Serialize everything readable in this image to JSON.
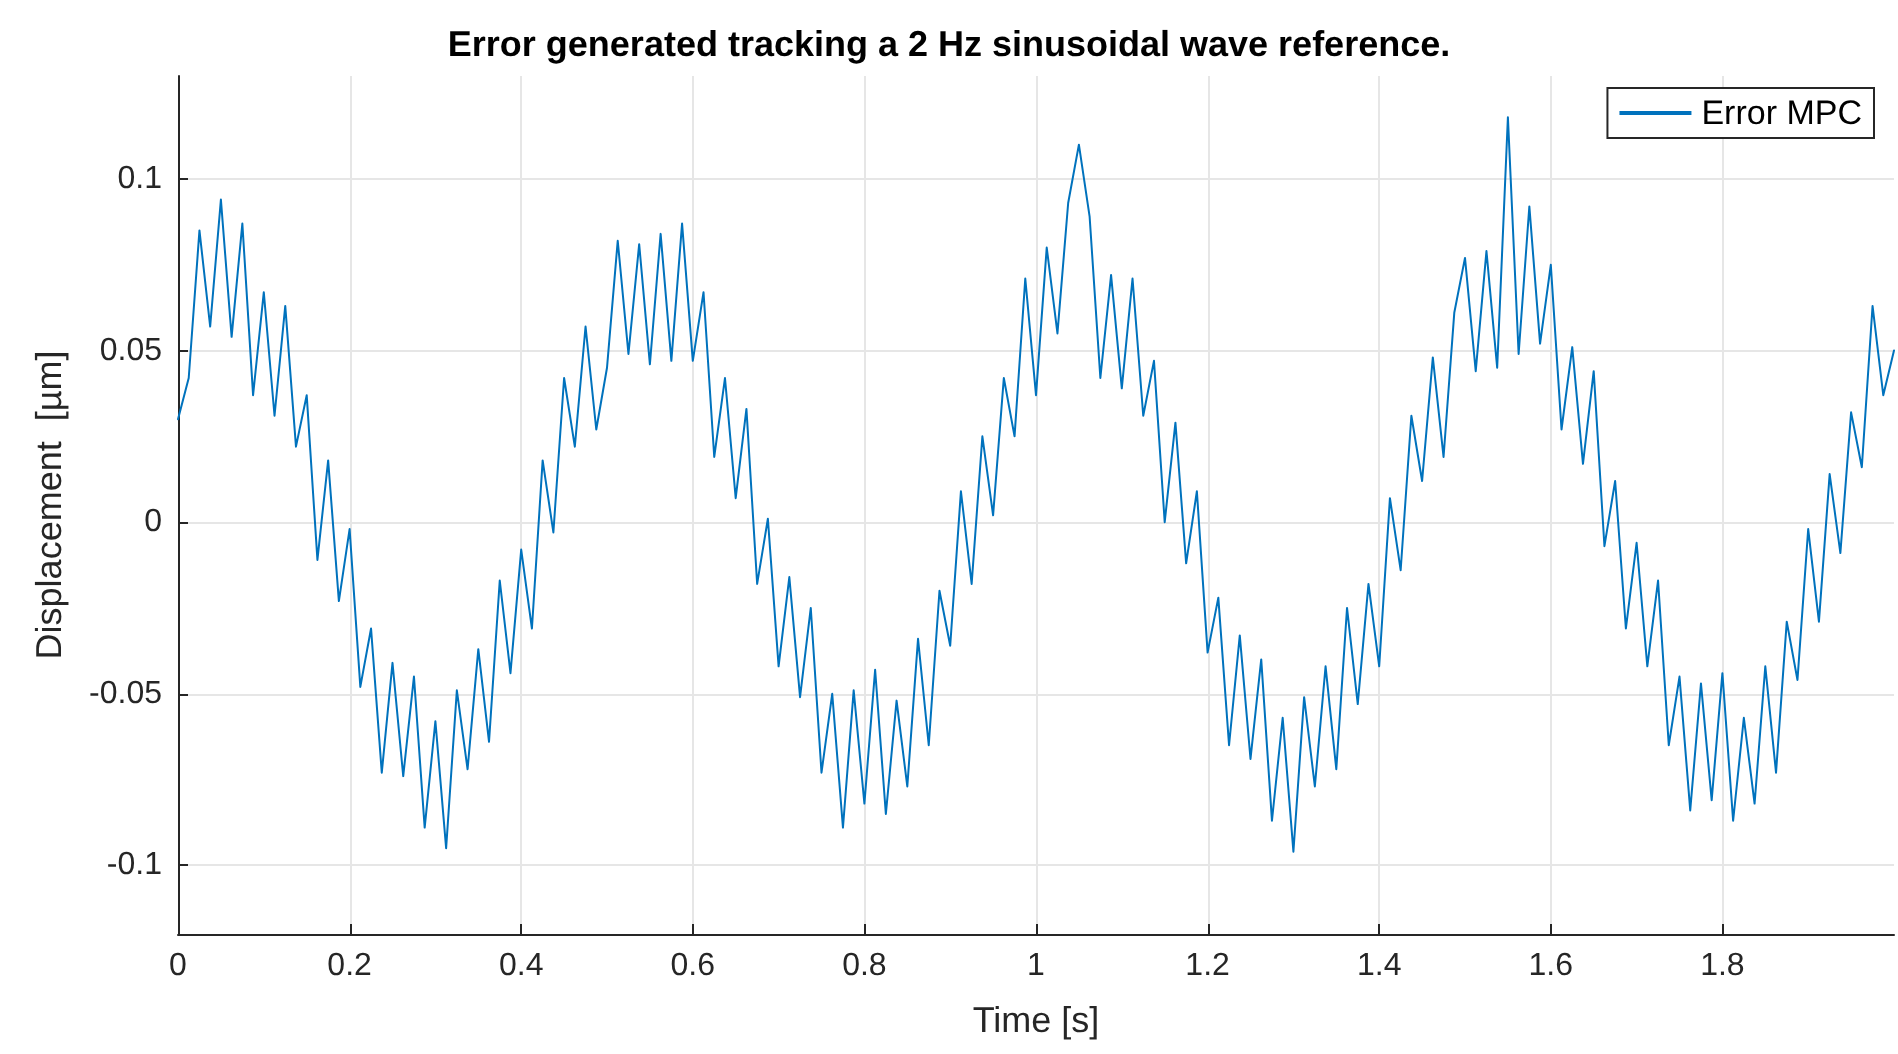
{
  "chart_data": {
    "type": "line",
    "title": "Error generated tracking a 2 Hz sinusoidal wave reference.",
    "xlabel": "Time [s]",
    "ylabel": "Displacement  [µm]",
    "xlim": [
      0,
      2
    ],
    "xticks": [
      0,
      0.2,
      0.4,
      0.6,
      0.8,
      1,
      1.2,
      1.4,
      1.6,
      1.8
    ],
    "ylim": [
      -0.12,
      0.13
    ],
    "yticks": [
      -0.1,
      -0.05,
      0,
      0.05,
      0.1
    ],
    "grid": true,
    "legend": "top right",
    "marker": "none",
    "line_style": "solid",
    "x": [
      0,
      0.0125,
      0.025,
      0.0375,
      0.05,
      0.0625,
      0.075,
      0.0875,
      0.1,
      0.1125,
      0.125,
      0.1375,
      0.15,
      0.1625,
      0.175,
      0.1875,
      0.2,
      0.2125,
      0.225,
      0.2375,
      0.25,
      0.2625,
      0.275,
      0.2875,
      0.3,
      0.3125,
      0.325,
      0.3375,
      0.35,
      0.3625,
      0.375,
      0.3875,
      0.4,
      0.4125,
      0.425,
      0.4375,
      0.45,
      0.4625,
      0.475,
      0.4875,
      0.5,
      0.5125,
      0.525,
      0.5375,
      0.55,
      0.5625,
      0.575,
      0.5875,
      0.6,
      0.6125,
      0.625,
      0.6375,
      0.65,
      0.6625,
      0.675,
      0.6875,
      0.7,
      0.7125,
      0.725,
      0.7375,
      0.75,
      0.7625,
      0.775,
      0.7875,
      0.8,
      0.8125,
      0.825,
      0.8375,
      0.85,
      0.8625,
      0.875,
      0.8875,
      0.9,
      0.9125,
      0.925,
      0.9375,
      0.95,
      0.9625,
      0.975,
      0.9875,
      1,
      1.0125,
      1.025,
      1.0375,
      1.05,
      1.0625,
      1.075,
      1.0875,
      1.1,
      1.1125,
      1.125,
      1.1375,
      1.15,
      1.1625,
      1.175,
      1.1875,
      1.2,
      1.2125,
      1.225,
      1.2375,
      1.25,
      1.2625,
      1.275,
      1.2875,
      1.3,
      1.3125,
      1.325,
      1.3375,
      1.35,
      1.3625,
      1.375,
      1.3875,
      1.4,
      1.4125,
      1.425,
      1.4375,
      1.45,
      1.4625,
      1.475,
      1.4875,
      1.5,
      1.5125,
      1.525,
      1.5375,
      1.55,
      1.5625,
      1.575,
      1.5875,
      1.6,
      1.6125,
      1.625,
      1.6375,
      1.65,
      1.6625,
      1.675,
      1.6875,
      1.7,
      1.7125,
      1.725,
      1.7375,
      1.75,
      1.7625,
      1.775,
      1.7875,
      1.8,
      1.8125,
      1.825,
      1.8375,
      1.85,
      1.8625,
      1.875,
      1.8875,
      1.9,
      1.9125,
      1.925,
      1.9375,
      1.95,
      1.9625,
      1.975,
      1.9875,
      2
    ],
    "series": [
      {
        "name": "Error MPC",
        "color": "#0072bd",
        "values": [
          0.03,
          0.042,
          0.085,
          0.057,
          0.094,
          0.054,
          0.087,
          0.037,
          0.067,
          0.031,
          0.063,
          0.022,
          0.037,
          -0.011,
          0.018,
          -0.023,
          -0.002,
          -0.048,
          -0.031,
          -0.073,
          -0.041,
          -0.074,
          -0.045,
          -0.089,
          -0.058,
          -0.095,
          -0.049,
          -0.072,
          -0.037,
          -0.064,
          -0.017,
          -0.044,
          -0.008,
          -0.031,
          0.018,
          -0.003,
          0.042,
          0.022,
          0.057,
          0.027,
          0.045,
          0.082,
          0.049,
          0.081,
          0.046,
          0.084,
          0.047,
          0.087,
          0.047,
          0.067,
          0.019,
          0.042,
          0.007,
          0.033,
          -0.018,
          0.001,
          -0.042,
          -0.016,
          -0.051,
          -0.025,
          -0.073,
          -0.05,
          -0.089,
          -0.049,
          -0.082,
          -0.043,
          -0.085,
          -0.052,
          -0.077,
          -0.034,
          -0.065,
          -0.02,
          -0.036,
          0.009,
          -0.018,
          0.025,
          0.002,
          0.042,
          0.025,
          0.071,
          0.037,
          0.08,
          0.055,
          0.093,
          0.11,
          0.089,
          0.042,
          0.072,
          0.039,
          0.071,
          0.031,
          0.047,
          0,
          0.029,
          -0.012,
          0.009,
          -0.038,
          -0.022,
          -0.065,
          -0.033,
          -0.069,
          -0.04,
          -0.087,
          -0.057,
          -0.096,
          -0.051,
          -0.077,
          -0.042,
          -0.072,
          -0.025,
          -0.053,
          -0.018,
          -0.042,
          0.007,
          -0.014,
          0.031,
          0.012,
          0.048,
          0.019,
          0.061,
          0.077,
          0.044,
          0.079,
          0.045,
          0.118,
          0.049,
          0.092,
          0.052,
          0.075,
          0.027,
          0.051,
          0.017,
          0.044,
          -0.007,
          0.012,
          -0.031,
          -0.006,
          -0.042,
          -0.017,
          -0.065,
          -0.045,
          -0.084,
          -0.047,
          -0.081,
          -0.044,
          -0.087,
          -0.057,
          -0.082,
          -0.042,
          -0.073,
          -0.029,
          -0.046,
          -0.002,
          -0.029,
          0.014,
          -0.009,
          0.032,
          0.016,
          0.063,
          0.037,
          0.05
        ]
      }
    ]
  }
}
